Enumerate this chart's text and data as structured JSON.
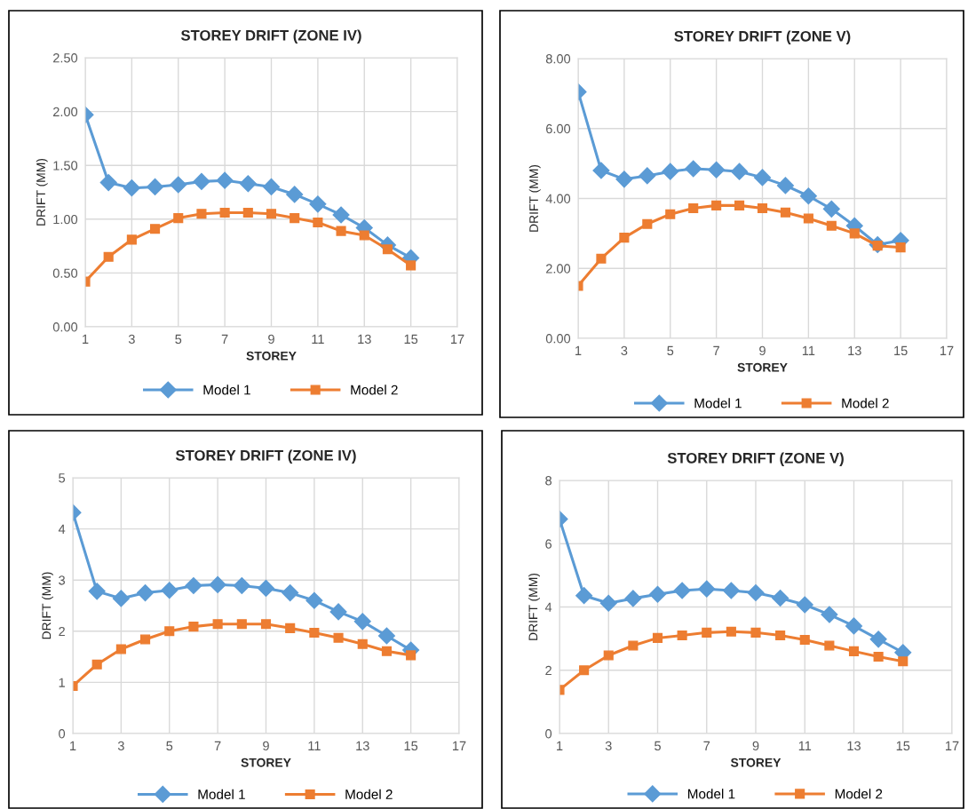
{
  "chart_data": [
    {
      "type": "line",
      "title": "STOREY DRIFT (ZONE IV)",
      "xlabel": "STOREY",
      "ylabel": "DRIFT (MM)",
      "x": [
        1,
        2,
        3,
        4,
        5,
        6,
        7,
        8,
        9,
        10,
        11,
        12,
        13,
        14,
        15
      ],
      "xlim": [
        1,
        17
      ],
      "xticks": [
        1,
        3,
        5,
        7,
        9,
        11,
        13,
        15,
        17
      ],
      "ylim": [
        0,
        2.5
      ],
      "yticks": [
        {
          "value": 0,
          "label": "0.00"
        },
        {
          "value": 0.5,
          "label": "0.50"
        },
        {
          "value": 1,
          "label": "1.00"
        },
        {
          "value": 1.5,
          "label": "1.50"
        },
        {
          "value": 2,
          "label": "2.00"
        },
        {
          "value": 2.5,
          "label": "2.50"
        }
      ],
      "grid": true,
      "legend": "bottom",
      "line_style": "solid",
      "series": [
        {
          "name": "Model 1",
          "color": "#5b9bd5",
          "marker": "diamond",
          "values": [
            1.97,
            1.34,
            1.29,
            1.3,
            1.32,
            1.35,
            1.36,
            1.33,
            1.3,
            1.23,
            1.14,
            1.04,
            0.92,
            0.76,
            0.64
          ]
        },
        {
          "name": "Model 2",
          "color": "#ed7d31",
          "marker": "square",
          "values": [
            0.42,
            0.65,
            0.81,
            0.91,
            1.01,
            1.05,
            1.06,
            1.06,
            1.05,
            1.01,
            0.97,
            0.89,
            0.85,
            0.72,
            0.57
          ]
        }
      ]
    },
    {
      "type": "line",
      "title": "STOREY DRIFT (ZONE V)",
      "xlabel": "STOREY",
      "ylabel": "DRIFT (MM)",
      "x": [
        1,
        2,
        3,
        4,
        5,
        6,
        7,
        8,
        9,
        10,
        11,
        12,
        13,
        14,
        15
      ],
      "xlim": [
        1,
        17
      ],
      "xticks": [
        1,
        3,
        5,
        7,
        9,
        11,
        13,
        15,
        17
      ],
      "ylim": [
        0,
        8
      ],
      "yticks": [
        {
          "value": 0,
          "label": "0.00"
        },
        {
          "value": 2,
          "label": "2.00"
        },
        {
          "value": 4,
          "label": "4.00"
        },
        {
          "value": 6,
          "label": "6.00"
        },
        {
          "value": 8,
          "label": "8.00"
        }
      ],
      "grid": true,
      "legend": "bottom",
      "line_style": "solid",
      "series": [
        {
          "name": "Model 1",
          "color": "#5b9bd5",
          "marker": "diamond",
          "values": [
            7.05,
            4.8,
            4.55,
            4.65,
            4.77,
            4.85,
            4.82,
            4.77,
            4.6,
            4.37,
            4.07,
            3.7,
            3.22,
            2.68,
            2.8
          ]
        },
        {
          "name": "Model 2",
          "color": "#ed7d31",
          "marker": "square",
          "values": [
            1.5,
            2.28,
            2.88,
            3.27,
            3.55,
            3.72,
            3.8,
            3.8,
            3.72,
            3.6,
            3.43,
            3.22,
            3.0,
            2.65,
            2.6
          ]
        }
      ]
    },
    {
      "type": "line",
      "title": "STOREY DRIFT (ZONE IV)",
      "xlabel": "STOREY",
      "ylabel": "DRIFT (MM)",
      "x": [
        1,
        2,
        3,
        4,
        5,
        6,
        7,
        8,
        9,
        10,
        11,
        12,
        13,
        14,
        15
      ],
      "xlim": [
        1,
        17
      ],
      "xticks": [
        1,
        3,
        5,
        7,
        9,
        11,
        13,
        15,
        17
      ],
      "ylim": [
        0,
        5
      ],
      "yticks": [
        0,
        1,
        2,
        3,
        4,
        5
      ],
      "grid": true,
      "legend": "bottom",
      "line_style": "solid",
      "series": [
        {
          "name": "Model 1",
          "color": "#5b9bd5",
          "marker": "diamond",
          "values": [
            4.32,
            2.78,
            2.64,
            2.75,
            2.8,
            2.89,
            2.91,
            2.89,
            2.84,
            2.75,
            2.6,
            2.38,
            2.19,
            1.91,
            1.63
          ]
        },
        {
          "name": "Model 2",
          "color": "#ed7d31",
          "marker": "square",
          "values": [
            0.93,
            1.35,
            1.65,
            1.84,
            2.0,
            2.09,
            2.14,
            2.14,
            2.14,
            2.06,
            1.97,
            1.87,
            1.75,
            1.61,
            1.53
          ]
        }
      ]
    },
    {
      "type": "line",
      "title": "STOREY DRIFT (ZONE V)",
      "xlabel": "STOREY",
      "ylabel": "DRIFT (MM)",
      "x": [
        1,
        2,
        3,
        4,
        5,
        6,
        7,
        8,
        9,
        10,
        11,
        12,
        13,
        14,
        15
      ],
      "xlim": [
        1,
        17
      ],
      "xticks": [
        1,
        3,
        5,
        7,
        9,
        11,
        13,
        15,
        17
      ],
      "ylim": [
        0,
        8
      ],
      "yticks": [
        0,
        2,
        4,
        6,
        8
      ],
      "grid": true,
      "legend": "bottom",
      "line_style": "solid",
      "series": [
        {
          "name": "Model 1",
          "color": "#5b9bd5",
          "marker": "diamond",
          "values": [
            6.78,
            4.36,
            4.12,
            4.27,
            4.4,
            4.52,
            4.57,
            4.52,
            4.45,
            4.28,
            4.07,
            3.76,
            3.4,
            2.98,
            2.56
          ]
        },
        {
          "name": "Model 2",
          "color": "#ed7d31",
          "marker": "square",
          "values": [
            1.38,
            2.0,
            2.47,
            2.78,
            3.02,
            3.1,
            3.19,
            3.22,
            3.19,
            3.1,
            2.96,
            2.78,
            2.6,
            2.43,
            2.28
          ]
        }
      ]
    }
  ]
}
